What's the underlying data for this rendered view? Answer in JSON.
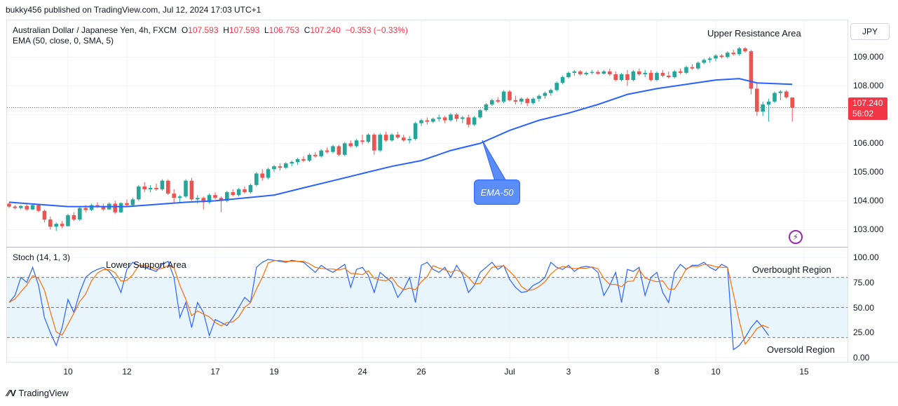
{
  "header": {
    "publisher": "bukky456 published on TradingView.com, Jul 12, 2024 17:03 UTC+1"
  },
  "legend": {
    "symbol": "Australian Dollar / Japanese Yen, 4h, FXCM",
    "o_label": "O",
    "o_value": "107.593",
    "h_label": "H",
    "h_value": "107.593",
    "l_label": "L",
    "l_value": "106.753",
    "c_label": "C",
    "c_value": "107.240",
    "change": "−0.353 (−0.33%)",
    "ema": "EMA (50, close, 0, SMA, 5)",
    "stoch": "Stoch (14, 1, 3)"
  },
  "currency_button": "JPY",
  "price_badge": {
    "price": "107.240",
    "countdown": "56:02"
  },
  "annotations": {
    "upper_resistance": "Upper Resistance Area",
    "lower_support": "Lower Support Area",
    "overbought": "Overbought Region",
    "oversold": "Oversold Region",
    "ema_callout": "EMA-50"
  },
  "footer": {
    "brand": "TradingView"
  },
  "colors": {
    "up": "#26a69a",
    "down": "#ef5350",
    "ema": "#2962ff",
    "stoch_k": "#2962ff",
    "stoch_d": "#ff6d00",
    "band": "#e3f2fd"
  },
  "chart_data": [
    {
      "type": "candlestick",
      "ylim": [
        102.4,
        110.3
      ],
      "y_ticks": [
        "109.000",
        "108.000",
        "107.000",
        "106.000",
        "105.000",
        "104.000",
        "103.000"
      ],
      "y_tick_values": [
        109,
        108,
        107,
        106,
        105,
        104,
        103
      ],
      "x_ticks": [
        "10",
        "12",
        "17",
        "19",
        "24",
        "26",
        "Jul",
        "3",
        "8",
        "10",
        "15"
      ],
      "x_tick_index": [
        10,
        20,
        35,
        45,
        60,
        70,
        85,
        95,
        110,
        120,
        135
      ],
      "last_price": 107.24,
      "candles": [
        [
          103.9,
          103.95,
          103.75,
          103.8
        ],
        [
          103.8,
          103.85,
          103.7,
          103.75
        ],
        [
          103.75,
          103.85,
          103.7,
          103.82
        ],
        [
          103.82,
          103.9,
          103.65,
          103.7
        ],
        [
          103.7,
          103.88,
          103.68,
          103.85
        ],
        [
          103.85,
          103.9,
          103.6,
          103.65
        ],
        [
          103.65,
          103.7,
          103.25,
          103.35
        ],
        [
          103.35,
          103.45,
          103.0,
          103.1
        ],
        [
          103.1,
          103.25,
          102.95,
          103.2
        ],
        [
          103.2,
          103.3,
          103.05,
          103.12
        ],
        [
          103.12,
          103.55,
          103.1,
          103.5
        ],
        [
          103.5,
          103.6,
          103.3,
          103.35
        ],
        [
          103.35,
          103.8,
          103.3,
          103.75
        ],
        [
          103.75,
          103.85,
          103.6,
          103.68
        ],
        [
          103.68,
          103.9,
          103.65,
          103.85
        ],
        [
          103.85,
          103.95,
          103.75,
          103.8
        ],
        [
          103.8,
          103.9,
          103.65,
          103.7
        ],
        [
          103.7,
          103.95,
          103.68,
          103.9
        ],
        [
          103.9,
          104.0,
          103.55,
          103.6
        ],
        [
          103.6,
          103.95,
          103.58,
          103.92
        ],
        [
          103.92,
          104.05,
          103.8,
          103.85
        ],
        [
          103.85,
          104.1,
          103.8,
          104.05
        ],
        [
          104.05,
          104.55,
          104.0,
          104.5
        ],
        [
          104.5,
          104.65,
          104.3,
          104.4
        ],
        [
          104.4,
          104.55,
          104.3,
          104.45
        ],
        [
          104.45,
          104.6,
          104.35,
          104.4
        ],
        [
          104.4,
          104.75,
          104.35,
          104.7
        ],
        [
          104.7,
          104.75,
          104.2,
          104.25
        ],
        [
          104.25,
          104.4,
          103.9,
          104.1
        ],
        [
          104.1,
          104.2,
          103.95,
          104.15
        ],
        [
          104.15,
          104.75,
          104.1,
          104.7
        ],
        [
          104.7,
          104.8,
          104.0,
          104.05
        ],
        [
          104.05,
          104.2,
          103.9,
          104.1
        ],
        [
          104.1,
          104.15,
          103.7,
          103.95
        ],
        [
          103.95,
          104.25,
          103.9,
          104.2
        ],
        [
          104.2,
          104.3,
          104.05,
          104.1
        ],
        [
          104.1,
          104.15,
          103.6,
          104.0
        ],
        [
          104.0,
          104.35,
          103.95,
          104.3
        ],
        [
          104.3,
          104.4,
          104.15,
          104.2
        ],
        [
          104.2,
          104.45,
          104.15,
          104.4
        ],
        [
          104.4,
          104.5,
          104.25,
          104.3
        ],
        [
          104.3,
          104.6,
          104.25,
          104.55
        ],
        [
          104.55,
          105.0,
          104.5,
          104.95
        ],
        [
          104.95,
          105.1,
          104.7,
          104.8
        ],
        [
          104.8,
          105.15,
          104.75,
          105.1
        ],
        [
          105.1,
          105.25,
          105.0,
          105.2
        ],
        [
          105.2,
          105.3,
          105.05,
          105.15
        ],
        [
          105.15,
          105.35,
          105.1,
          105.3
        ],
        [
          105.3,
          105.4,
          105.2,
          105.35
        ],
        [
          105.35,
          105.5,
          105.25,
          105.45
        ],
        [
          105.45,
          105.55,
          105.35,
          105.4
        ],
        [
          105.4,
          105.65,
          105.35,
          105.6
        ],
        [
          105.6,
          105.7,
          105.5,
          105.55
        ],
        [
          105.55,
          105.8,
          105.5,
          105.75
        ],
        [
          105.75,
          105.85,
          105.65,
          105.7
        ],
        [
          105.7,
          105.95,
          105.65,
          105.9
        ],
        [
          105.9,
          105.95,
          105.55,
          105.6
        ],
        [
          105.6,
          106.05,
          105.55,
          106.0
        ],
        [
          106.0,
          106.1,
          105.85,
          105.9
        ],
        [
          105.9,
          106.15,
          105.85,
          106.1
        ],
        [
          106.1,
          106.3,
          105.95,
          106.05
        ],
        [
          106.05,
          106.35,
          106.0,
          106.3
        ],
        [
          106.3,
          106.35,
          105.6,
          105.75
        ],
        [
          105.75,
          106.35,
          105.7,
          106.3
        ],
        [
          106.3,
          106.4,
          106.05,
          106.1
        ],
        [
          106.1,
          106.35,
          106.05,
          106.3
        ],
        [
          106.3,
          106.4,
          106.15,
          106.2
        ],
        [
          106.2,
          106.3,
          106.05,
          106.1
        ],
        [
          106.1,
          106.25,
          106.0,
          106.15
        ],
        [
          106.15,
          106.75,
          106.1,
          106.7
        ],
        [
          106.7,
          106.85,
          106.6,
          106.8
        ],
        [
          106.8,
          106.9,
          106.65,
          106.75
        ],
        [
          106.75,
          106.9,
          106.7,
          106.85
        ],
        [
          106.85,
          107.0,
          106.75,
          106.9
        ],
        [
          106.9,
          106.95,
          106.7,
          106.8
        ],
        [
          106.8,
          107.05,
          106.75,
          107.0
        ],
        [
          107.0,
          107.05,
          106.75,
          106.85
        ],
        [
          106.85,
          106.95,
          106.7,
          106.9
        ],
        [
          106.9,
          107.0,
          106.55,
          106.65
        ],
        [
          106.65,
          106.95,
          106.6,
          106.9
        ],
        [
          106.9,
          107.2,
          106.85,
          107.15
        ],
        [
          107.15,
          107.4,
          107.1,
          107.35
        ],
        [
          107.35,
          107.55,
          107.3,
          107.5
        ],
        [
          107.5,
          107.6,
          107.4,
          107.45
        ],
        [
          107.45,
          107.85,
          107.4,
          107.8
        ],
        [
          107.8,
          107.85,
          107.45,
          107.5
        ],
        [
          107.5,
          107.65,
          107.35,
          107.45
        ],
        [
          107.45,
          107.6,
          107.35,
          107.55
        ],
        [
          107.55,
          107.6,
          107.3,
          107.4
        ],
        [
          107.4,
          107.6,
          107.35,
          107.55
        ],
        [
          107.55,
          107.7,
          107.45,
          107.65
        ],
        [
          107.65,
          107.8,
          107.55,
          107.75
        ],
        [
          107.75,
          107.9,
          107.65,
          107.85
        ],
        [
          107.85,
          108.15,
          107.8,
          108.1
        ],
        [
          108.1,
          108.35,
          108.05,
          108.3
        ],
        [
          108.3,
          108.5,
          108.25,
          108.45
        ],
        [
          108.45,
          108.55,
          108.35,
          108.5
        ],
        [
          108.5,
          108.55,
          108.35,
          108.4
        ],
        [
          108.4,
          108.5,
          108.35,
          108.45
        ],
        [
          108.45,
          108.55,
          108.4,
          108.48
        ],
        [
          108.48,
          108.55,
          108.38,
          108.42
        ],
        [
          108.42,
          108.55,
          108.4,
          108.5
        ],
        [
          108.5,
          108.6,
          108.35,
          108.4
        ],
        [
          108.4,
          108.5,
          108.15,
          108.2
        ],
        [
          108.2,
          108.45,
          108.15,
          108.4
        ],
        [
          108.4,
          108.55,
          108.0,
          108.2
        ],
        [
          108.2,
          108.55,
          108.15,
          108.5
        ],
        [
          108.5,
          108.6,
          108.35,
          108.4
        ],
        [
          108.4,
          108.55,
          108.3,
          108.45
        ],
        [
          108.45,
          108.55,
          108.15,
          108.2
        ],
        [
          108.2,
          108.5,
          108.15,
          108.45
        ],
        [
          108.45,
          108.55,
          108.3,
          108.35
        ],
        [
          108.35,
          108.5,
          108.25,
          108.3
        ],
        [
          108.3,
          108.55,
          108.25,
          108.5
        ],
        [
          108.5,
          108.6,
          108.4,
          108.45
        ],
        [
          108.45,
          108.7,
          108.4,
          108.65
        ],
        [
          108.65,
          108.75,
          108.55,
          108.6
        ],
        [
          108.6,
          108.85,
          108.55,
          108.8
        ],
        [
          108.8,
          108.95,
          108.75,
          108.9
        ],
        [
          108.9,
          109.0,
          108.8,
          108.95
        ],
        [
          108.95,
          109.1,
          108.85,
          109.05
        ],
        [
          109.05,
          109.1,
          108.95,
          109.0
        ],
        [
          109.0,
          109.2,
          108.95,
          109.15
        ],
        [
          109.15,
          109.25,
          109.05,
          109.1
        ],
        [
          109.1,
          109.35,
          109.05,
          109.3
        ],
        [
          109.3,
          109.35,
          109.15,
          109.2
        ],
        [
          109.2,
          109.25,
          107.7,
          107.9
        ],
        [
          107.9,
          108.1,
          106.95,
          107.1
        ],
        [
          107.1,
          107.45,
          106.95,
          107.35
        ],
        [
          107.35,
          107.55,
          106.75,
          107.45
        ],
        [
          107.45,
          107.8,
          107.4,
          107.75
        ],
        [
          107.75,
          107.85,
          107.5,
          107.8
        ],
        [
          107.8,
          107.85,
          107.55,
          107.6
        ],
        [
          107.593,
          107.593,
          106.753,
          107.24
        ]
      ],
      "ema50": [
        [
          0,
          103.95
        ],
        [
          10,
          103.8
        ],
        [
          20,
          103.8
        ],
        [
          30,
          103.95
        ],
        [
          35,
          104.0
        ],
        [
          45,
          104.2
        ],
        [
          50,
          104.45
        ],
        [
          55,
          104.7
        ],
        [
          60,
          104.95
        ],
        [
          65,
          105.2
        ],
        [
          70,
          105.4
        ],
        [
          75,
          105.75
        ],
        [
          80,
          106.0
        ],
        [
          85,
          106.45
        ],
        [
          90,
          106.8
        ],
        [
          95,
          107.05
        ],
        [
          100,
          107.35
        ],
        [
          105,
          107.7
        ],
        [
          110,
          107.9
        ],
        [
          115,
          108.05
        ],
        [
          120,
          108.2
        ],
        [
          124,
          108.25
        ],
        [
          127,
          108.1
        ],
        [
          133,
          108.05
        ]
      ]
    },
    {
      "type": "line",
      "name": "Stoch",
      "ylim": [
        0,
        100
      ],
      "y_ticks": [
        "100.00",
        "75.00",
        "50.00",
        "25.00",
        "0.00"
      ],
      "y_tick_values": [
        100,
        75,
        50,
        25,
        0
      ],
      "levels": [
        80,
        50,
        20
      ],
      "k": [
        55,
        62,
        80,
        75,
        90,
        72,
        40,
        25,
        12,
        30,
        58,
        45,
        65,
        80,
        85,
        88,
        90,
        86,
        78,
        65,
        88,
        95,
        92,
        90,
        88,
        86,
        93,
        96,
        80,
        40,
        55,
        30,
        55,
        45,
        22,
        38,
        35,
        32,
        40,
        50,
        60,
        55,
        90,
        95,
        98,
        97,
        96,
        95,
        97,
        96,
        95,
        90,
        85,
        92,
        88,
        85,
        89,
        93,
        70,
        88,
        90,
        82,
        65,
        85,
        80,
        75,
        60,
        68,
        80,
        55,
        92,
        95,
        88,
        85,
        90,
        80,
        92,
        83,
        65,
        72,
        85,
        90,
        95,
        88,
        92,
        78,
        70,
        65,
        66,
        72,
        75,
        80,
        95,
        90,
        88,
        92,
        86,
        90,
        91,
        90,
        85,
        62,
        72,
        85,
        55,
        88,
        86,
        90,
        62,
        80,
        85,
        65,
        55,
        85,
        93,
        88,
        92,
        92,
        95,
        90,
        87,
        93,
        90,
        8,
        12,
        20,
        30,
        37,
        30,
        22
      ]
    }
  ]
}
